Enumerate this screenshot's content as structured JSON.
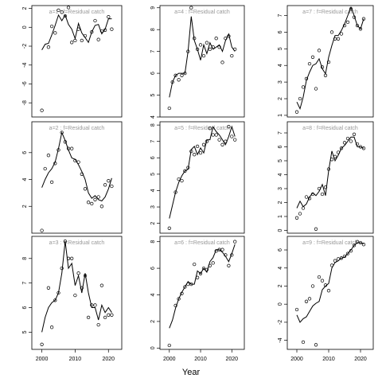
{
  "figure": {
    "xlabel": "Year",
    "line_color": "#000000",
    "point_color": "#000000",
    "title_color": "#999999"
  },
  "chart_data": [
    {
      "type": "scatter",
      "title": "a=1  :  f=Residual catch",
      "xlim": [
        1997,
        2024
      ],
      "ylim": [
        -9.5,
        2.3
      ],
      "yticks": [
        2,
        0,
        -2,
        -4,
        -6,
        -8
      ],
      "xticks": [],
      "series": [
        {
          "name": "observed",
          "x": [
            2000,
            2002,
            2003,
            2004,
            2005,
            2006,
            2007,
            2008,
            2009,
            2010,
            2011,
            2012,
            2013,
            2015,
            2016,
            2017,
            2018,
            2019,
            2020,
            2021
          ],
          "y": [
            -8.8,
            -2.1,
            0.1,
            -0.6,
            1.8,
            1.6,
            1.2,
            2.1,
            -1.6,
            -1.4,
            -0.2,
            -1.4,
            -0.9,
            -0.5,
            0.7,
            -1.3,
            -0.4,
            -0.3,
            1.1,
            -0.2
          ]
        },
        {
          "name": "fitted",
          "x": [
            2000,
            2001,
            2002,
            2003,
            2004,
            2005,
            2006,
            2007,
            2008,
            2009,
            2010,
            2011,
            2012,
            2013,
            2014,
            2015,
            2016,
            2017,
            2018,
            2019,
            2020,
            2021
          ],
          "y": [
            -2.4,
            -1.8,
            -1.7,
            -0.8,
            0.2,
            1.3,
            0.7,
            1.3,
            0.3,
            -0.2,
            -1.2,
            0.4,
            -0.6,
            -1.1,
            -1.6,
            -0.5,
            0.2,
            0.3,
            -0.7,
            -0.2,
            0.9,
            0.9
          ]
        }
      ]
    },
    {
      "type": "scatter",
      "title": "a=2  :  f=Residual catch",
      "xlim": [
        1997,
        2024
      ],
      "ylim": [
        0.0,
        8.3
      ],
      "yticks": [
        2,
        4,
        6
      ],
      "xticks": [],
      "series": [
        {
          "name": "observed",
          "x": [
            2000,
            2001,
            2002,
            2003,
            2004,
            2005,
            2006,
            2007,
            2008,
            2009,
            2010,
            2011,
            2012,
            2013,
            2014,
            2015,
            2016,
            2017,
            2018,
            2019,
            2020,
            2021
          ],
          "y": [
            0.2,
            4.8,
            5.8,
            3.8,
            5.2,
            6.2,
            7.5,
            6.8,
            6.3,
            6.3,
            5.4,
            5.3,
            4.4,
            3.3,
            2.3,
            2.2,
            2.5,
            2.7,
            2.0,
            3.6,
            3.9,
            3.5
          ]
        },
        {
          "name": "fitted",
          "x": [
            2000,
            2001,
            2002,
            2003,
            2004,
            2005,
            2006,
            2007,
            2008,
            2009,
            2010,
            2011,
            2012,
            2013,
            2014,
            2015,
            2016,
            2017,
            2018,
            2019,
            2020,
            2021
          ],
          "y": [
            3.4,
            4.0,
            4.5,
            4.8,
            5.3,
            6.3,
            7.5,
            6.9,
            6.2,
            5.6,
            5.5,
            5.1,
            4.6,
            4.0,
            3.0,
            2.6,
            2.8,
            2.5,
            2.4,
            2.7,
            3.3,
            4.1
          ]
        }
      ]
    },
    {
      "type": "scatter",
      "title": "a=3  :  f=Residual catch",
      "xlim": [
        1997,
        2024
      ],
      "ylim": [
        4.3,
        8.9
      ],
      "yticks": [
        5,
        6,
        7,
        8
      ],
      "xticks": [
        2000,
        2010,
        2020
      ],
      "series": [
        {
          "name": "observed",
          "x": [
            2000,
            2002,
            2003,
            2004,
            2005,
            2006,
            2007,
            2008,
            2009,
            2010,
            2011,
            2012,
            2013,
            2014,
            2015,
            2016,
            2017,
            2018,
            2019,
            2020,
            2021
          ],
          "y": [
            4.5,
            6.8,
            5.2,
            6.3,
            6.6,
            7.6,
            8.7,
            8.0,
            8.0,
            6.5,
            7.4,
            6.8,
            7.3,
            5.6,
            6.1,
            6.1,
            5.3,
            6.9,
            5.6,
            5.7,
            5.7
          ]
        },
        {
          "name": "fitted",
          "x": [
            2000,
            2001,
            2002,
            2003,
            2004,
            2005,
            2006,
            2007,
            2008,
            2009,
            2010,
            2011,
            2012,
            2013,
            2014,
            2015,
            2016,
            2017,
            2018,
            2019,
            2020,
            2021
          ],
          "y": [
            5.0,
            5.6,
            6.0,
            6.2,
            6.3,
            6.6,
            7.4,
            8.7,
            7.6,
            7.8,
            6.9,
            7.3,
            6.6,
            7.4,
            6.6,
            6.0,
            6.0,
            5.5,
            6.1,
            5.8,
            6.0,
            5.8
          ]
        }
      ]
    },
    {
      "type": "scatter",
      "title": "a=4  :  f=Residual catch",
      "xlim": [
        1997,
        2024
      ],
      "ylim": [
        4.0,
        9.1
      ],
      "yticks": [
        4,
        5,
        6,
        7,
        8,
        9
      ],
      "xticks": [],
      "series": [
        {
          "name": "observed",
          "x": [
            2000,
            2001,
            2002,
            2003,
            2004,
            2005,
            2006,
            2007,
            2008,
            2009,
            2010,
            2011,
            2012,
            2013,
            2014,
            2015,
            2016,
            2017,
            2018,
            2019,
            2020,
            2021
          ],
          "y": [
            4.4,
            5.6,
            5.9,
            5.7,
            5.9,
            6.0,
            7.0,
            9.0,
            7.6,
            7.1,
            7.3,
            6.8,
            7.4,
            7.1,
            7.2,
            7.6,
            7.2,
            6.5,
            7.6,
            7.7,
            6.8,
            7.1
          ]
        },
        {
          "name": "fitted",
          "x": [
            2000,
            2001,
            2002,
            2003,
            2004,
            2005,
            2006,
            2007,
            2008,
            2009,
            2010,
            2011,
            2012,
            2013,
            2014,
            2015,
            2016,
            2017,
            2018,
            2019,
            2020,
            2021
          ],
          "y": [
            4.9,
            5.6,
            5.9,
            6.0,
            6.0,
            6.0,
            7.0,
            8.6,
            7.5,
            7.1,
            6.6,
            7.3,
            6.9,
            7.4,
            7.1,
            7.2,
            7.3,
            7.0,
            7.5,
            7.8,
            7.2,
            7.0
          ]
        }
      ]
    },
    {
      "type": "scatter",
      "title": "a=5  :  f=Residual catch",
      "xlim": [
        1997,
        2024
      ],
      "ylim": [
        1.4,
        8.2
      ],
      "yticks": [
        2,
        3,
        4,
        5,
        6,
        7,
        8
      ],
      "xticks": [],
      "series": [
        {
          "name": "observed",
          "x": [
            2000,
            2002,
            2003,
            2004,
            2005,
            2006,
            2007,
            2008,
            2009,
            2010,
            2011,
            2012,
            2013,
            2014,
            2015,
            2016,
            2017,
            2018,
            2019,
            2020,
            2021
          ],
          "y": [
            1.7,
            3.9,
            4.7,
            4.6,
            5.2,
            5.4,
            6.4,
            6.2,
            6.7,
            6.3,
            6.8,
            7.0,
            7.8,
            7.4,
            7.4,
            7.1,
            6.8,
            7.0,
            7.9,
            7.3,
            7.1
          ]
        },
        {
          "name": "fitted",
          "x": [
            2000,
            2001,
            2002,
            2003,
            2004,
            2005,
            2006,
            2007,
            2008,
            2009,
            2010,
            2011,
            2012,
            2013,
            2014,
            2015,
            2016,
            2017,
            2018,
            2019,
            2020,
            2021
          ],
          "y": [
            2.3,
            3.1,
            3.9,
            4.5,
            4.9,
            5.2,
            5.3,
            6.5,
            6.7,
            6.2,
            6.6,
            6.3,
            7.1,
            7.1,
            7.9,
            7.6,
            7.4,
            7.1,
            6.8,
            7.3,
            7.9,
            7.3
          ]
        }
      ]
    },
    {
      "type": "scatter",
      "title": "a=6  :  f=Residual catch",
      "xlim": [
        1997,
        2024
      ],
      "ylim": [
        -0.1,
        8.4
      ],
      "yticks": [
        0,
        2,
        4,
        6,
        8
      ],
      "xticks": [
        2000,
        2010,
        2020
      ],
      "series": [
        {
          "name": "observed",
          "x": [
            2000,
            2002,
            2003,
            2004,
            2005,
            2006,
            2007,
            2008,
            2009,
            2010,
            2011,
            2012,
            2013,
            2014,
            2015,
            2016,
            2017,
            2018,
            2019,
            2020,
            2021
          ],
          "y": [
            0.2,
            3.2,
            3.7,
            4.1,
            4.6,
            4.8,
            4.8,
            6.3,
            5.3,
            5.6,
            6.0,
            5.9,
            6.2,
            6.4,
            7.3,
            7.4,
            7.4,
            7.0,
            6.2,
            7.0,
            8.0
          ]
        },
        {
          "name": "fitted",
          "x": [
            2000,
            2001,
            2002,
            2003,
            2004,
            2005,
            2006,
            2007,
            2008,
            2009,
            2010,
            2011,
            2012,
            2013,
            2014,
            2015,
            2016,
            2017,
            2018,
            2019,
            2020,
            2021
          ],
          "y": [
            1.5,
            2.1,
            3.0,
            3.7,
            4.2,
            4.6,
            5.0,
            4.8,
            4.8,
            5.8,
            5.6,
            6.0,
            5.7,
            6.5,
            6.8,
            7.4,
            7.4,
            7.2,
            6.9,
            6.5,
            7.1,
            7.8
          ]
        }
      ]
    },
    {
      "type": "scatter",
      "title": "a=7  :  f=Residual catch",
      "xlim": [
        1997,
        2024
      ],
      "ylim": [
        0.9,
        7.6
      ],
      "yticks": [
        1,
        2,
        3,
        4,
        5,
        6,
        7
      ],
      "xticks": [],
      "series": [
        {
          "name": "observed",
          "x": [
            2000,
            2001,
            2002,
            2003,
            2004,
            2005,
            2006,
            2007,
            2008,
            2009,
            2010,
            2011,
            2012,
            2013,
            2014,
            2015,
            2016,
            2017,
            2018,
            2019,
            2020,
            2021
          ],
          "y": [
            1.2,
            2.0,
            2.7,
            3.2,
            4.1,
            4.5,
            2.6,
            4.9,
            3.9,
            3.4,
            4.2,
            6.0,
            5.6,
            5.6,
            5.9,
            6.4,
            6.6,
            7.4,
            6.9,
            6.4,
            6.2,
            6.8
          ]
        },
        {
          "name": "fitted",
          "x": [
            2000,
            2001,
            2002,
            2003,
            2004,
            2005,
            2006,
            2007,
            2008,
            2009,
            2010,
            2011,
            2012,
            2013,
            2014,
            2015,
            2016,
            2017,
            2018,
            2019,
            2020,
            2021
          ],
          "y": [
            1.8,
            1.4,
            2.1,
            3.1,
            3.6,
            4.0,
            4.1,
            4.4,
            3.8,
            3.5,
            4.5,
            5.2,
            5.8,
            5.8,
            6.1,
            6.5,
            7.0,
            7.5,
            7.0,
            6.4,
            6.2,
            6.8
          ]
        }
      ]
    },
    {
      "type": "scatter",
      "title": "a=8  :  f=Residual catch",
      "xlim": [
        1997,
        2024
      ],
      "ylim": [
        -0.2,
        7.8
      ],
      "yticks": [
        0,
        1,
        2,
        3,
        4,
        5,
        6,
        7
      ],
      "xticks": [],
      "series": [
        {
          "name": "observed",
          "x": [
            2000,
            2001,
            2002,
            2003,
            2004,
            2005,
            2006,
            2007,
            2008,
            2009,
            2010,
            2011,
            2012,
            2013,
            2014,
            2015,
            2016,
            2017,
            2018,
            2019,
            2020,
            2021
          ],
          "y": [
            0.9,
            1.2,
            1.6,
            2.4,
            2.3,
            2.6,
            0.1,
            3.0,
            2.6,
            3.1,
            4.4,
            5.1,
            5.3,
            5.6,
            5.9,
            6.3,
            6.6,
            6.4,
            6.9,
            6.2,
            6.0,
            5.9
          ]
        },
        {
          "name": "fitted",
          "x": [
            2000,
            2001,
            2002,
            2003,
            2004,
            2005,
            2006,
            2007,
            2008,
            2009,
            2010,
            2011,
            2012,
            2013,
            2014,
            2015,
            2016,
            2017,
            2018,
            2019,
            2020,
            2021
          ],
          "y": [
            1.6,
            2.1,
            1.7,
            1.9,
            2.4,
            2.7,
            2.5,
            2.8,
            3.3,
            2.5,
            4.3,
            5.7,
            5.0,
            5.4,
            5.9,
            6.1,
            6.4,
            6.7,
            6.7,
            6.0,
            6.0,
            5.9
          ]
        }
      ]
    },
    {
      "type": "scatter",
      "title": "a=9  :  f=Residual catch",
      "xlim": [
        1997,
        2024
      ],
      "ylim": [
        -5.0,
        7.5
      ],
      "yticks": [
        -4,
        -2,
        0,
        2,
        4,
        6
      ],
      "xticks": [
        2000,
        2010,
        2020
      ],
      "series": [
        {
          "name": "observed",
          "x": [
            2000,
            2002,
            2003,
            2004,
            2005,
            2006,
            2007,
            2008,
            2009,
            2010,
            2011,
            2012,
            2013,
            2014,
            2015,
            2016,
            2017,
            2018,
            2019,
            2020,
            2021
          ],
          "y": [
            -0.6,
            -4.2,
            0.3,
            0.6,
            2.0,
            -4.5,
            3.0,
            2.6,
            2.1,
            1.5,
            4.3,
            4.8,
            5.0,
            5.1,
            5.3,
            5.6,
            5.9,
            6.5,
            6.9,
            6.8,
            6.6
          ]
        },
        {
          "name": "fitted",
          "x": [
            2000,
            2001,
            2002,
            2003,
            2004,
            2005,
            2006,
            2007,
            2008,
            2009,
            2010,
            2011,
            2012,
            2013,
            2014,
            2015,
            2016,
            2017,
            2018,
            2019,
            2020,
            2021
          ],
          "y": [
            -1.2,
            -2.0,
            -1.6,
            -1.4,
            -0.8,
            -0.2,
            0.1,
            0.3,
            1.6,
            2.0,
            2.3,
            4.0,
            4.6,
            4.8,
            5.1,
            5.2,
            5.6,
            6.0,
            6.5,
            6.8,
            6.8,
            6.7
          ]
        }
      ]
    }
  ]
}
